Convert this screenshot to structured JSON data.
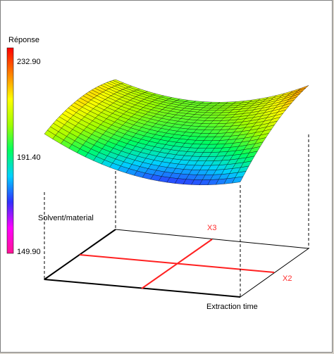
{
  "chart_data": {
    "type": "surface3d",
    "title": "Réponse",
    "colorbar": {
      "label": "Réponse",
      "ticks": [
        "232.90",
        "191.40",
        "149.90"
      ],
      "min": 149.9,
      "max": 232.9,
      "colors": [
        "#ff1493",
        "#ff00ff",
        "#3030ff",
        "#00d0ff",
        "#00ff60",
        "#a0ff00",
        "#ffff00",
        "#ff8000",
        "#ff0000"
      ]
    },
    "axes": {
      "x_label": "Extraction time",
      "y_label": "Solvent/material",
      "factor_labels": [
        "X3",
        "X2"
      ]
    },
    "surface": {
      "grid": 24,
      "description": "saddle-shaped response: high at front-left and back-right ridges, low minimum near front-center"
    }
  }
}
